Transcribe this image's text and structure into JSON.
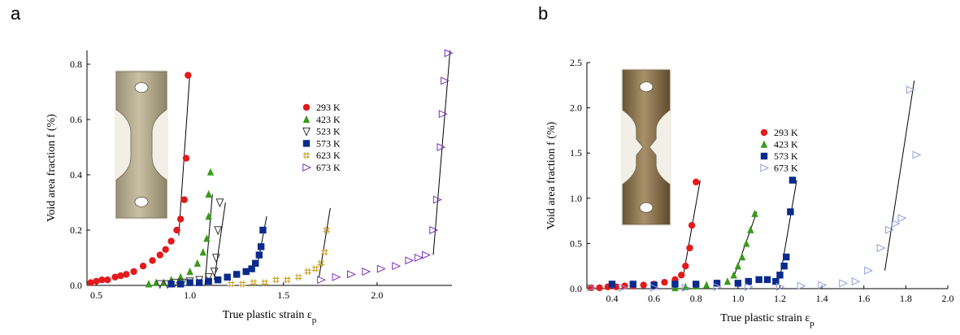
{
  "panels": [
    {
      "letter": "a",
      "chart_data": {
        "type": "scatter",
        "title": "",
        "xlabel": "True plastic strain ε",
        "xlabel_sub": "p",
        "ylabel": "Void area fraction f (%)",
        "xlim": [
          0.45,
          2.4
        ],
        "ylim": [
          0,
          0.85
        ],
        "xticks": [
          "0.5",
          "1.0",
          "1.5",
          "2.0"
        ],
        "xtick_values": [
          0.5,
          1.0,
          1.5,
          2.0
        ],
        "yticks": [
          "0.0",
          "0.2",
          "0.4",
          "0.6",
          "0.8"
        ],
        "ytick_values": [
          0,
          0.2,
          0.4,
          0.6,
          0.8
        ],
        "legend_position": "right-center",
        "series": [
          {
            "name": "293 K",
            "marker": "circle",
            "color": "#e31a1c",
            "x": [
              0.47,
              0.5,
              0.53,
              0.56,
              0.6,
              0.63,
              0.66,
              0.7,
              0.75,
              0.8,
              0.84,
              0.87,
              0.9,
              0.93,
              0.95,
              0.97,
              0.98
            ],
            "y": [
              0.01,
              0.015,
              0.02,
              0.02,
              0.03,
              0.035,
              0.04,
              0.05,
              0.07,
              0.09,
              0.11,
              0.13,
              0.16,
              0.2,
              0.24,
              0.31,
              0.46
            ],
            "fit": [
              [
                0.94,
                0.18
              ],
              [
                1.0,
                0.77
              ]
            ],
            "extra": [
              [
                0.99,
                0.76
              ]
            ]
          },
          {
            "name": "423 K",
            "marker": "triangle-up",
            "color": "#3a9a1a",
            "x": [
              0.78,
              0.82,
              0.86,
              0.9,
              0.95,
              1.0,
              1.04,
              1.07,
              1.09,
              1.1,
              1.1,
              1.11
            ],
            "y": [
              0.005,
              0.01,
              0.01,
              0.02,
              0.03,
              0.05,
              0.08,
              0.12,
              0.17,
              0.25,
              0.33,
              0.41
            ],
            "fit": [
              [
                1.08,
                0.0
              ],
              [
                1.12,
                0.33
              ]
            ]
          },
          {
            "name": "523 K",
            "marker": "triangle-down-open",
            "color": "#333333",
            "x": [
              0.84,
              0.88,
              0.92,
              0.96,
              1.0,
              1.05,
              1.1,
              1.13,
              1.14,
              1.15,
              1.16
            ],
            "y": [
              0.005,
              0.005,
              0.01,
              0.01,
              0.015,
              0.02,
              0.03,
              0.05,
              0.1,
              0.2,
              0.3
            ],
            "fit": [
              [
                1.13,
                0.02
              ],
              [
                1.19,
                0.3
              ]
            ]
          },
          {
            "name": "573 K",
            "marker": "square",
            "color": "#0a2a8c",
            "x": [
              0.9,
              0.95,
              1.0,
              1.05,
              1.1,
              1.15,
              1.2,
              1.25,
              1.3,
              1.33,
              1.35,
              1.37,
              1.38,
              1.39
            ],
            "y": [
              0.005,
              0.005,
              0.01,
              0.01,
              0.015,
              0.02,
              0.03,
              0.04,
              0.05,
              0.06,
              0.08,
              0.11,
              0.14,
              0.2
            ],
            "fit": [
              [
                1.36,
                0.07
              ],
              [
                1.41,
                0.25
              ]
            ]
          },
          {
            "name": "623 K",
            "marker": "hash",
            "color": "#c9a227",
            "x": [
              1.22,
              1.28,
              1.34,
              1.4,
              1.46,
              1.52,
              1.58,
              1.63,
              1.67,
              1.7,
              1.72,
              1.73
            ],
            "y": [
              0.005,
              0.005,
              0.01,
              0.01,
              0.02,
              0.02,
              0.03,
              0.05,
              0.06,
              0.08,
              0.12,
              0.2
            ],
            "fit": [
              [
                1.69,
                0.03
              ],
              [
                1.75,
                0.28
              ]
            ]
          },
          {
            "name": "673 K",
            "marker": "triangle-right-open",
            "color": "#7b2fbe",
            "x": [
              1.7,
              1.78,
              1.86,
              1.94,
              2.02,
              2.1,
              2.17,
              2.22,
              2.26,
              2.3,
              2.32,
              2.34,
              2.35,
              2.36,
              2.38
            ],
            "y": [
              0.02,
              0.03,
              0.04,
              0.05,
              0.06,
              0.07,
              0.09,
              0.1,
              0.11,
              0.2,
              0.31,
              0.5,
              0.62,
              0.74,
              0.84
            ],
            "fit": [
              [
                2.3,
                0.11
              ],
              [
                2.39,
                0.85
              ]
            ]
          }
        ]
      }
    },
    {
      "letter": "b",
      "chart_data": {
        "type": "scatter",
        "title": "",
        "xlabel": "True plastic strain ε",
        "xlabel_sub": "p",
        "ylabel": "Void area fraction f (%)",
        "xlim": [
          0.28,
          2.0
        ],
        "ylim": [
          0,
          2.5
        ],
        "xticks": [
          "0.4",
          "0.6",
          "0.8",
          "1.0",
          "1.2",
          "1.4",
          "1.6",
          "1.8",
          "2.0"
        ],
        "xtick_values": [
          0.4,
          0.6,
          0.8,
          1.0,
          1.2,
          1.4,
          1.6,
          1.8,
          2.0
        ],
        "yticks": [
          "0.0",
          "0.5",
          "1.0",
          "1.5",
          "2.0",
          "2.5"
        ],
        "ytick_values": [
          0,
          0.5,
          1.0,
          1.5,
          2.0,
          2.5
        ],
        "legend_position": "right-center",
        "series": [
          {
            "name": "293 K",
            "marker": "circle",
            "color": "#e31a1c",
            "x": [
              0.3,
              0.34,
              0.38,
              0.42,
              0.46,
              0.5,
              0.55,
              0.6,
              0.65,
              0.7,
              0.73,
              0.75,
              0.77,
              0.78,
              0.8
            ],
            "y": [
              0.01,
              0.01,
              0.02,
              0.02,
              0.03,
              0.03,
              0.04,
              0.05,
              0.07,
              0.1,
              0.15,
              0.25,
              0.45,
              0.7,
              1.18
            ],
            "fit": [
              [
                0.74,
                0.15
              ],
              [
                0.82,
                1.2
              ]
            ]
          },
          {
            "name": "423 K",
            "marker": "triangle-up",
            "color": "#3a9a1a",
            "x": [
              0.7,
              0.75,
              0.8,
              0.85,
              0.9,
              0.95,
              0.98,
              1.0,
              1.02,
              1.04,
              1.06,
              1.08
            ],
            "y": [
              0.01,
              0.02,
              0.03,
              0.04,
              0.06,
              0.08,
              0.15,
              0.25,
              0.35,
              0.5,
              0.65,
              0.83
            ],
            "fit": [
              [
                0.98,
                0.13
              ],
              [
                1.09,
                0.85
              ]
            ]
          },
          {
            "name": "573 K",
            "marker": "square",
            "color": "#0a2a8c",
            "x": [
              0.4,
              0.5,
              0.6,
              0.7,
              0.8,
              0.9,
              1.0,
              1.05,
              1.1,
              1.14,
              1.18,
              1.2,
              1.22,
              1.23,
              1.25,
              1.26
            ],
            "y": [
              0.05,
              0.05,
              0.04,
              0.05,
              0.05,
              0.06,
              0.06,
              0.08,
              0.1,
              0.1,
              0.08,
              0.15,
              0.25,
              0.35,
              0.85,
              1.2
            ],
            "fit": [
              [
                1.2,
                0.12
              ],
              [
                1.28,
                1.2
              ]
            ]
          },
          {
            "name": "673 K",
            "marker": "triangle-right-open",
            "color": "#8f9fd9",
            "x": [
              0.3,
              0.45,
              0.6,
              0.75,
              0.9,
              1.05,
              1.2,
              1.3,
              1.4,
              1.5,
              1.56,
              1.62,
              1.68,
              1.72,
              1.75,
              1.78,
              1.82,
              1.85
            ],
            "y": [
              0.01,
              0.01,
              0.01,
              0.01,
              0.02,
              0.02,
              0.02,
              0.03,
              0.04,
              0.06,
              0.08,
              0.2,
              0.45,
              0.65,
              0.72,
              0.78,
              2.2,
              1.48
            ],
            "fit": [
              [
                1.7,
                0.2
              ],
              [
                1.84,
                2.3
              ]
            ]
          }
        ]
      }
    }
  ],
  "colors": {
    "specimen_metal": "#b8ad93",
    "specimen_dark": "#7c6a4c"
  },
  "icons": {
    "specimen_image_a": "dogbone-specimen-icon",
    "specimen_image_b": "notched-specimen-icon"
  }
}
